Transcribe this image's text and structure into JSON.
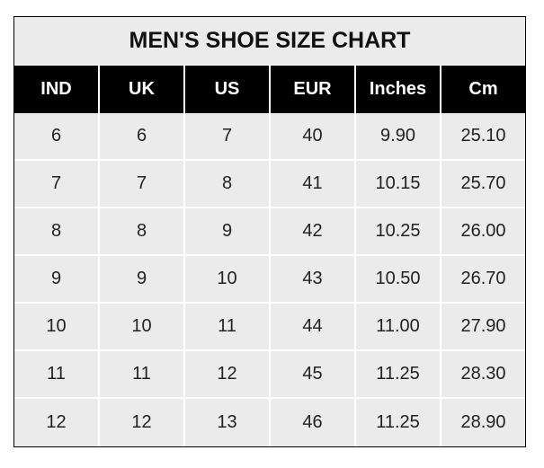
{
  "title": "MEN'S SHOE SIZE CHART",
  "columns": [
    "IND",
    "UK",
    "US",
    "EUR",
    "Inches",
    "Cm"
  ],
  "rows": [
    [
      "6",
      "6",
      "7",
      "40",
      "9.90",
      "25.10"
    ],
    [
      "7",
      "7",
      "8",
      "41",
      "10.15",
      "25.70"
    ],
    [
      "8",
      "8",
      "9",
      "42",
      "10.25",
      "26.00"
    ],
    [
      "9",
      "9",
      "10",
      "43",
      "10.50",
      "26.70"
    ],
    [
      "10",
      "10",
      "11",
      "44",
      "11.00",
      "27.90"
    ],
    [
      "11",
      "11",
      "12",
      "45",
      "11.25",
      "28.30"
    ],
    [
      "12",
      "12",
      "13",
      "46",
      "11.25",
      "28.90"
    ]
  ],
  "colors": {
    "header_bg": "#000000",
    "cell_bg": "#ebebeb",
    "grid": "#ffffff"
  }
}
